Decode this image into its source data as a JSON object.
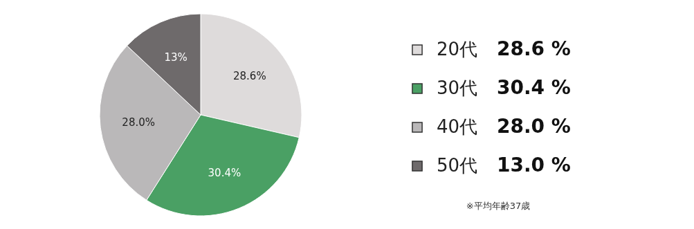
{
  "chart_data": {
    "type": "pie",
    "categories": [
      "20代",
      "30代",
      "40代",
      "50代"
    ],
    "values": [
      28.6,
      30.4,
      28.0,
      13.0
    ],
    "colors": [
      "#dedbdb",
      "#4aa064",
      "#bab8b9",
      "#6e6a6b"
    ],
    "value_labels": [
      "28.6%",
      "30.4%",
      "28.0%",
      "13%"
    ],
    "legend": "right",
    "annotations": [
      "28.6 %",
      "30.4 %",
      "28.0 %",
      "13.0 %",
      "※平均年齢37歳"
    ]
  }
}
